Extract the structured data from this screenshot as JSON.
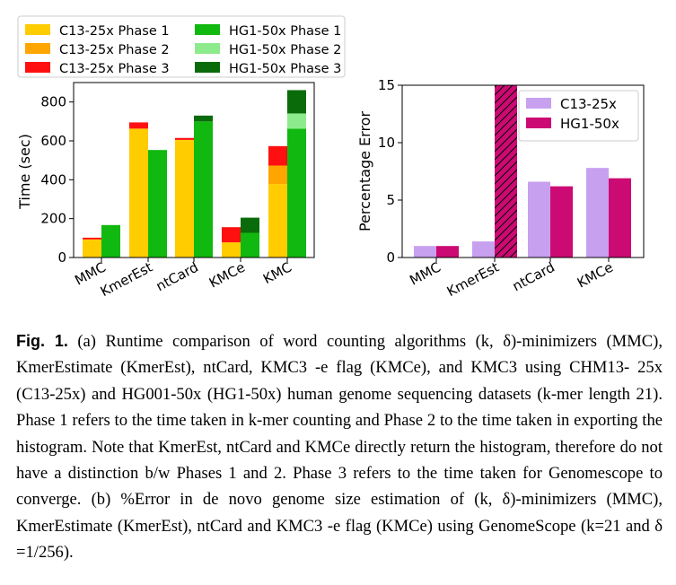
{
  "chart_data": [
    {
      "type": "bar",
      "stacked": true,
      "ylabel": "Time (sec)",
      "ylim": [
        0,
        900
      ],
      "yticks": [
        0,
        200,
        400,
        600,
        800
      ],
      "categories": [
        "MMC",
        "KmerEst",
        "ntCard",
        "KMCe",
        "KMC"
      ],
      "groups": [
        {
          "name": "C13-25x",
          "series": [
            {
              "name": "C13-25x Phase 1",
              "color": "#ffcc00",
              "values": [
                93,
                663,
                605,
                78,
                378
              ]
            },
            {
              "name": "C13-25x Phase 2",
              "color": "#ffa500",
              "values": [
                0,
                0,
                0,
                0,
                95
              ]
            },
            {
              "name": "C13-25x Phase 3",
              "color": "#ff1010",
              "values": [
                9,
                32,
                10,
                78,
                100
              ]
            }
          ]
        },
        {
          "name": "HG1-50x",
          "series": [
            {
              "name": "HG1-50x Phase 1",
              "color": "#11b80f",
              "values": [
                167,
                553,
                700,
                127,
                663
              ]
            },
            {
              "name": "HG1-50x Phase 2",
              "color": "#8deb8d",
              "values": [
                0,
                0,
                0,
                0,
                78
              ]
            },
            {
              "name": "HG1-50x Phase 3",
              "color": "#0a6b0a",
              "values": [
                0,
                0,
                30,
                78,
                120
              ]
            }
          ]
        }
      ],
      "legend": "top"
    },
    {
      "type": "bar",
      "ylabel": "Percentage Error",
      "ylim": [
        0,
        15
      ],
      "yticks": [
        0,
        5,
        10,
        15
      ],
      "categories": [
        "MMC",
        "KmerEst",
        "ntCard",
        "KMCe"
      ],
      "series": [
        {
          "name": "C13-25x",
          "color": "#c7a0f0",
          "values": [
            1.0,
            1.4,
            6.6,
            7.8
          ]
        },
        {
          "name": "HG1-50x",
          "color": "#cc0a73",
          "values": [
            1.0,
            15,
            6.2,
            6.9
          ],
          "hatched_index": 1
        }
      ],
      "legend": "top-right"
    }
  ],
  "caption": {
    "label": "Fig. 1.",
    "lines": [
      " (a) Runtime comparison of word counting algorithms (k, δ)-minimizers (MMC),",
      "KmerEstimate (KmerEst), ntCard, KMC3 -e flag (KMCe), and KMC3 using CHM13-",
      "25x (C13-25x) and HG001-50x (HG1-50x) human genome sequencing datasets (k-mer",
      "length 21). Phase 1 refers to the time taken in k-mer counting and Phase 2 to the time",
      "taken in exporting the histogram. Note that KmerEst, ntCard and KMCe directly return the",
      "histogram, therefore do not have a distinction b/w Phases 1 and 2. Phase 3 refers to the",
      "time taken for Genomescope to converge. (b) %Error in de novo genome size estimation of",
      "(k, δ)-minimizers (MMC), KmerEstimate (KmerEst), ntCard and KMC3 -e flag (KMCe)",
      "using GenomeScope (k=21 and δ =1/256)."
    ]
  }
}
